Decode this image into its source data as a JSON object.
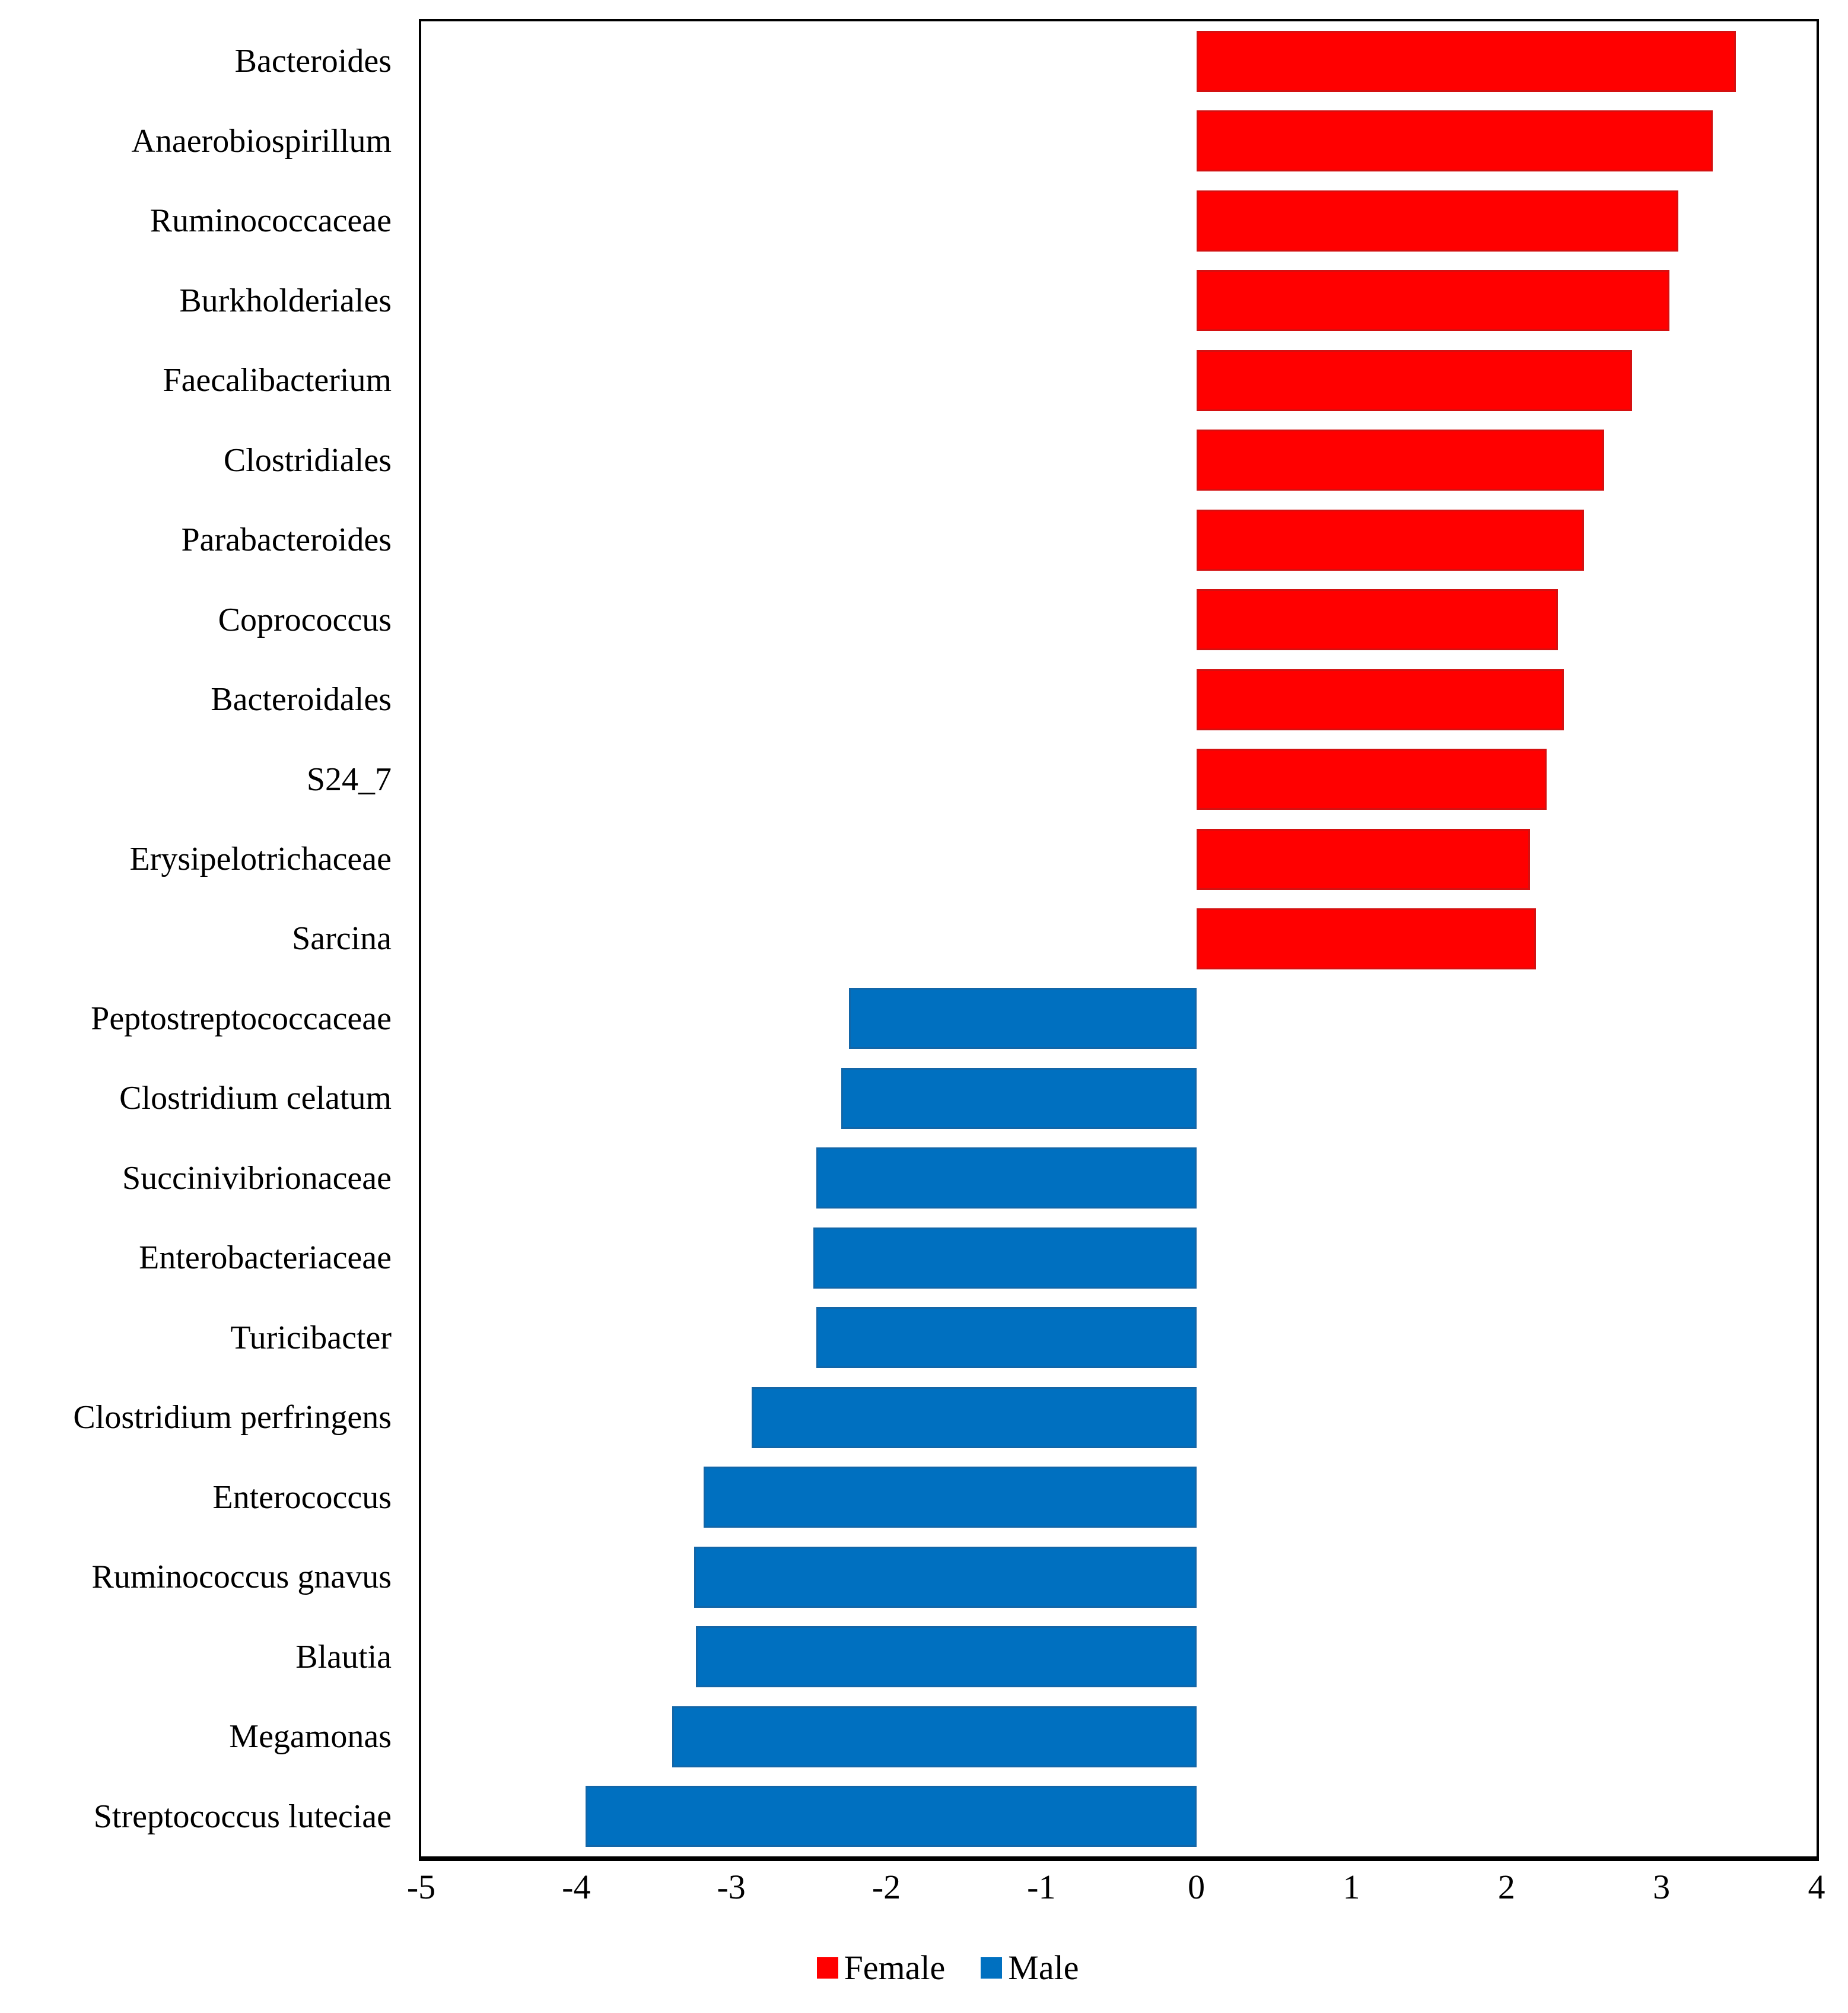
{
  "figure": {
    "background": "#ffffff",
    "text_color": "#000000"
  },
  "chart_data": {
    "type": "bar",
    "orientation": "horizontal",
    "title": "",
    "xlabel": "",
    "ylabel": "",
    "grid": false,
    "xlim": [
      -5,
      4
    ],
    "x_ticks": [
      -5,
      -4,
      -3,
      -2,
      -1,
      0,
      1,
      2,
      3,
      4
    ],
    "categories": [
      "Bacteroides",
      "Anaerobiospirillum",
      "Ruminococcaceae",
      "Burkholderiales",
      "Faecalibacterium",
      "Clostridiales",
      "Parabacteroides",
      "Coprococcus",
      "Bacteroidales",
      "S24_7",
      "Erysipelotrichaceae",
      "Sarcina",
      "Peptostreptococcaceae",
      "Clostridium celatum",
      "Succinivibrionaceae",
      "Enterobacteriaceae",
      "Turicibacter",
      "Clostridium perfringens",
      "Enterococcus",
      "Ruminococcus gnavus",
      "Blautia",
      "Megamonas",
      "Streptococcus luteciae"
    ],
    "values": [
      3.48,
      3.33,
      3.11,
      3.05,
      2.81,
      2.63,
      2.5,
      2.33,
      2.37,
      2.26,
      2.15,
      2.19,
      -2.24,
      -2.29,
      -2.45,
      -2.47,
      -2.45,
      -2.87,
      -3.18,
      -3.24,
      -3.23,
      -3.38,
      -3.94
    ],
    "series": [
      {
        "name": "Female",
        "color": "#ff0000",
        "applies_to": "positive-values"
      },
      {
        "name": "Male",
        "color": "#0070c0",
        "applies_to": "negative-values"
      }
    ],
    "legend_position": "bottom-center",
    "axis_color": "#000000"
  }
}
